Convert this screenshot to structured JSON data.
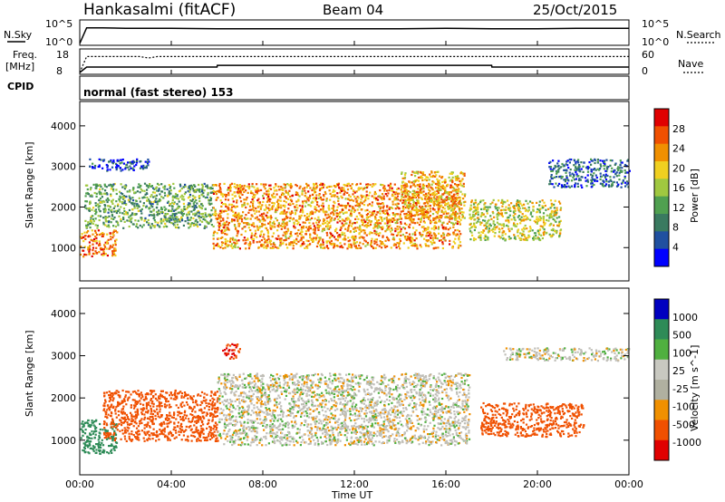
{
  "header": {
    "station": "Hankasalmi (fitACF)",
    "beam": "Beam 04",
    "date": "25/Oct/2015"
  },
  "noise_panel": {
    "left_label": "N.Sky",
    "right_label": "N.Search",
    "left_ticks": [
      "10^5",
      "10^0"
    ],
    "right_ticks": [
      "10^5",
      "10^0"
    ]
  },
  "freq_panel": {
    "left_label_line1": "Freq.",
    "left_label_line2": "[MHz]",
    "left_ticks": [
      "18",
      "8"
    ],
    "right_label": "Nave",
    "right_ticks": [
      "60",
      "0"
    ]
  },
  "cpid": {
    "label": "CPID",
    "mode_text": "normal (fast stereo) 153"
  },
  "x_axis": {
    "label": "Time UT",
    "ticks": [
      "00:00",
      "04:00",
      "08:00",
      "12:00",
      "16:00",
      "20:00",
      "00:00"
    ]
  },
  "colors": {
    "power_scale": [
      "#0000ff",
      "#2050a0",
      "#3a7a60",
      "#50a050",
      "#a0c840",
      "#f0d020",
      "#f09000",
      "#f05000",
      "#e00000"
    ],
    "velocity_scale": [
      "#e00000",
      "#f05000",
      "#f09000",
      "#b0b0a0",
      "#c8c8c0",
      "#50b040",
      "#2e8b57",
      "#0000c0"
    ],
    "grey_scatter": "#c0bfb8"
  },
  "chart_data": [
    {
      "type": "line",
      "title": "",
      "xlabel": "",
      "ylabel": "N.Sky",
      "xlim": [
        "00:00",
        "24:00"
      ],
      "ylim_label": [
        "10^0",
        "10^5"
      ],
      "series": [
        {
          "name": "N.Sky",
          "x": [
            0.0,
            0.3,
            1,
            2,
            4,
            6,
            8,
            10,
            12,
            14,
            16,
            18,
            20,
            22,
            24
          ],
          "values": [
            0,
            3.6,
            3.6,
            3.5,
            3.5,
            3.4,
            3.4,
            3.4,
            3.4,
            3.4,
            3.5,
            3.4,
            3.4,
            3.5,
            3.5
          ]
        }
      ]
    },
    {
      "type": "line",
      "title": "",
      "xlabel": "",
      "ylabel": "Freq. [MHz]",
      "ylim": [
        8,
        18
      ],
      "y2label": "Nave",
      "y2lim": [
        0,
        60
      ],
      "series": [
        {
          "name": "Freq.",
          "x": [
            0,
            0.3,
            6,
            6.01,
            18,
            18.01,
            24
          ],
          "values": [
            8,
            10.5,
            10.5,
            11.3,
            11.3,
            10.5,
            10.5
          ]
        },
        {
          "name": "Nave",
          "x": [
            0,
            0.3,
            2.6,
            3,
            3.4,
            24
          ],
          "values": [
            0,
            44,
            44,
            40,
            44,
            44
          ]
        }
      ]
    },
    {
      "type": "heatmap",
      "title": "",
      "xlabel": "",
      "ylabel": "Slant Range [km]",
      "colorbar_label": "Power [dB]",
      "colorbar_ticks": [
        "28",
        "24",
        "20",
        "16",
        "12",
        "8",
        "4"
      ],
      "y_ticks": [
        "1000",
        "2000",
        "3000",
        "4000"
      ],
      "xlim": [
        "00:00",
        "24:00"
      ],
      "ylim": [
        180,
        4600
      ],
      "features": [
        {
          "t_start": 0.0,
          "t_end": 1.6,
          "range_start": 800,
          "range_end": 1450,
          "power_db": 26
        },
        {
          "t_start": 0.2,
          "t_end": 5.8,
          "range_start": 1500,
          "range_end": 2600,
          "power_db": 12
        },
        {
          "t_start": 5.8,
          "t_end": 16.6,
          "range_start": 1000,
          "range_end": 2600,
          "power_db": 24
        },
        {
          "t_start": 14.0,
          "t_end": 16.8,
          "range_start": 1700,
          "range_end": 2900,
          "power_db": 22
        },
        {
          "t_start": 17.0,
          "t_end": 21.0,
          "range_start": 1200,
          "range_end": 2200,
          "power_db": 18
        },
        {
          "t_start": 0.4,
          "t_end": 3.0,
          "range_start": 2900,
          "range_end": 3200,
          "power_db": 4
        },
        {
          "t_start": 20.4,
          "t_end": 24.0,
          "range_start": 2500,
          "range_end": 3200,
          "power_db": 6
        }
      ]
    },
    {
      "type": "heatmap",
      "title": "",
      "xlabel": "Time UT",
      "ylabel": "Slant Range [km]",
      "colorbar_label": "Velocity [m s^-1]",
      "colorbar_ticks": [
        "1000",
        "500",
        "100",
        "25",
        "-25",
        "-100",
        "-500",
        "-1000"
      ],
      "y_ticks": [
        "1000",
        "2000",
        "3000",
        "4000"
      ],
      "xlim": [
        "00:00",
        "24:00"
      ],
      "ylim": [
        180,
        4600
      ],
      "features": [
        {
          "t_start": 0.0,
          "t_end": 1.6,
          "range_start": 700,
          "range_end": 1500,
          "velocity": 150
        },
        {
          "t_start": 1.0,
          "t_end": 6.0,
          "range_start": 1000,
          "range_end": 2200,
          "velocity": -200
        },
        {
          "t_start": 6.0,
          "t_end": 17.0,
          "range_start": 900,
          "range_end": 2600,
          "velocity": 0
        },
        {
          "t_start": 6.2,
          "t_end": 7.0,
          "range_start": 2950,
          "range_end": 3300,
          "velocity": -500
        },
        {
          "t_start": 17.5,
          "t_end": 22.0,
          "range_start": 1100,
          "range_end": 1900,
          "velocity": -300
        },
        {
          "t_start": 18.5,
          "t_end": 24.0,
          "range_start": 2900,
          "range_end": 3200,
          "velocity": 0
        }
      ]
    }
  ]
}
